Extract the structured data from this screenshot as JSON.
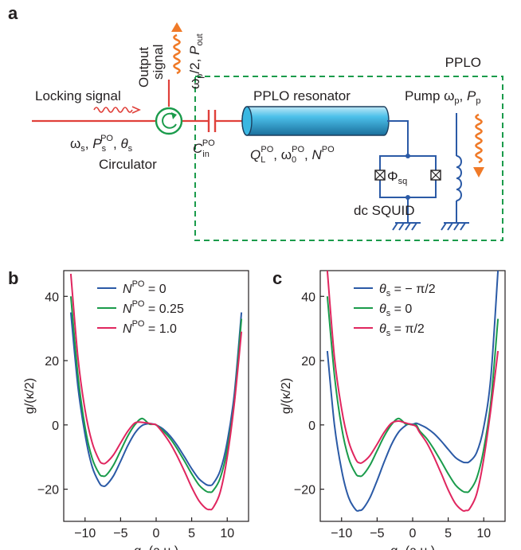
{
  "panel_a": {
    "letter": "a",
    "output_signal": [
      "Output",
      "signal"
    ],
    "output_freq": {
      "base": "ω",
      "sub": "p",
      "rest": "/2, ",
      "p": "P",
      "psub": "out"
    },
    "locking_signal": "Locking signal",
    "input_params": {
      "w": "ω",
      "wsub": "s",
      "P": "P",
      "Psub": "s",
      "Psup": "PO",
      "th": "θ",
      "thsub": "s"
    },
    "circulator": "Circulator",
    "capacitor": {
      "base": "C",
      "sub": "in",
      "sup": "PO"
    },
    "resonator": "PPLO resonator",
    "resonator_params": {
      "Q": "Q",
      "Qsub": "L",
      "Qsup": "PO",
      "w": "ω",
      "wsub": "0",
      "wsup": "PO",
      "N": "N",
      "Nsup": "PO"
    },
    "squid_flux": {
      "base": "Φ",
      "sub": "sq"
    },
    "squid": "dc SQUID",
    "pplo": "PPLO",
    "pump": {
      "label": "Pump ",
      "w": "ω",
      "wsub": "p",
      "P": "P",
      "Psub": "p"
    },
    "colors": {
      "dashed_box": "#1a9b4b",
      "red_line": "#e0403a",
      "blue": "#2b5aa6",
      "orange": "#f07a28",
      "cyan": "#3ab7e2"
    }
  },
  "panels": [
    {
      "letter": "b",
      "ylabel": "g/(κ/2)",
      "xlabel": "q_x (a.u.)",
      "xticks": [
        -10,
        -5,
        0,
        5,
        10
      ],
      "yticks": [
        -20,
        0,
        20,
        40
      ],
      "xlim": [
        -13,
        13
      ],
      "ylim": [
        -30,
        48
      ],
      "legend": [
        {
          "pre": "N",
          "sup": "PO",
          "post": " = 0",
          "color": "#2b5aa6"
        },
        {
          "pre": "N",
          "sup": "PO",
          "post": " = 0.25",
          "color": "#1a9b4b"
        },
        {
          "pre": "N",
          "sup": "PO",
          "post": " = 1.0",
          "color": "#e0265f"
        }
      ]
    },
    {
      "letter": "c",
      "ylabel": "g/(κ/2)",
      "xlabel": "q_x (a.u.)",
      "xticks": [
        -10,
        -5,
        0,
        5,
        10
      ],
      "yticks": [
        -20,
        0,
        20,
        40
      ],
      "xlim": [
        -13,
        13
      ],
      "ylim": [
        -30,
        48
      ],
      "legend": [
        {
          "pre": "θ",
          "sub": "s",
          "post": " = − π/2",
          "color": "#2b5aa6"
        },
        {
          "pre": "θ",
          "sub": "s",
          "post": " = 0",
          "color": "#1a9b4b"
        },
        {
          "pre": "θ",
          "sub": "s",
          "post": " = π/2",
          "color": "#e0265f"
        }
      ]
    }
  ],
  "chart_data": [
    {
      "type": "line",
      "panel": "b",
      "x": [
        -12,
        -11,
        -10,
        -9,
        -8,
        -7.5,
        -7,
        -6,
        -5,
        -4,
        -3,
        -2,
        -1,
        -0.5,
        0,
        1,
        2,
        3,
        4,
        5,
        6,
        7,
        7.5,
        8,
        9,
        10,
        11,
        12
      ],
      "series": [
        {
          "name": "N^PO = 0",
          "color": "#2b5aa6",
          "values": [
            35,
            12,
            -3,
            -13,
            -18,
            -19,
            -18.7,
            -15.8,
            -11.3,
            -6.5,
            -2.6,
            -0.2,
            0.4,
            0.3,
            0,
            -1.3,
            -3.5,
            -6.5,
            -10,
            -13.6,
            -16.7,
            -18.5,
            -18.8,
            -18.3,
            -14.3,
            -5.3,
            9.7,
            35
          ]
        },
        {
          "name": "N^PO = 0.25",
          "color": "#1a9b4b",
          "values": [
            40,
            15.5,
            -0.7,
            -10.4,
            -15.2,
            -15.9,
            -15.6,
            -12.5,
            -8,
            -3.5,
            0,
            2,
            0.3,
            0.2,
            0,
            -1.9,
            -4.3,
            -7.6,
            -11.3,
            -15.2,
            -18.6,
            -20.6,
            -20.9,
            -20.5,
            -16.6,
            -7.6,
            7.4,
            33
          ]
        },
        {
          "name": "N^PO = 1.0",
          "color": "#e0265f",
          "values": [
            47,
            21,
            4.6,
            -5.5,
            -11,
            -12,
            -11.7,
            -9.3,
            -5.6,
            -2,
            0.6,
            0.8,
            0.5,
            0.2,
            0,
            -2.6,
            -5.8,
            -9.9,
            -14.5,
            -19.4,
            -23.5,
            -26,
            -26.3,
            -25.8,
            -21,
            -10,
            6.8,
            29
          ]
        }
      ],
      "xlabel": "q_x (a.u.)",
      "ylabel": "g/(κ/2)",
      "xlim": [
        -13,
        13
      ],
      "ylim": [
        -30,
        48
      ]
    },
    {
      "type": "line",
      "panel": "c",
      "x": [
        -12,
        -11,
        -10,
        -9,
        -8,
        -7.5,
        -7,
        -6,
        -5,
        -4,
        -3,
        -2,
        -1,
        -0.5,
        0,
        0.5,
        1,
        2,
        3,
        4,
        5,
        6,
        7,
        7.5,
        8,
        9,
        10,
        11,
        12
      ],
      "series": [
        {
          "name": "θ_s = −π/2",
          "color": "#2b5aa6",
          "values": [
            23,
            0,
            -14,
            -22.6,
            -26.4,
            -26.6,
            -26.1,
            -22.6,
            -17.3,
            -11.5,
            -6.2,
            -2.3,
            -0.2,
            0.3,
            0.2,
            0.5,
            0.1,
            -1,
            -2.7,
            -5,
            -7.6,
            -10.1,
            -11.5,
            -11.7,
            -11.4,
            -8.6,
            -0.7,
            15,
            48
          ]
        },
        {
          "name": "θ_s = 0",
          "color": "#1a9b4b",
          "values": [
            40,
            15.5,
            -0.7,
            -10.4,
            -15.2,
            -15.9,
            -15.6,
            -12.5,
            -8,
            -3.5,
            0,
            2,
            0.3,
            0.2,
            0,
            0,
            -1.9,
            -4.3,
            -7.6,
            -11.3,
            -15.2,
            -18.6,
            -20.6,
            -20.9,
            -20.5,
            -16.6,
            -7.6,
            7.4,
            33
          ]
        },
        {
          "name": "θ_s = π/2",
          "color": "#e0265f",
          "values": [
            48,
            21,
            5,
            -5.2,
            -10.7,
            -11.8,
            -11.6,
            -9.5,
            -6,
            -2.3,
            0.5,
            1.2,
            0.6,
            0.3,
            0,
            -0.5,
            -2.4,
            -5.6,
            -10,
            -15,
            -20.2,
            -24.4,
            -26.6,
            -26.6,
            -26.1,
            -21.5,
            -10.6,
            5,
            23
          ]
        }
      ],
      "xlabel": "q_x (a.u.)",
      "ylabel": "g/(κ/2)",
      "xlim": [
        -13,
        13
      ],
      "ylim": [
        -30,
        48
      ]
    }
  ]
}
